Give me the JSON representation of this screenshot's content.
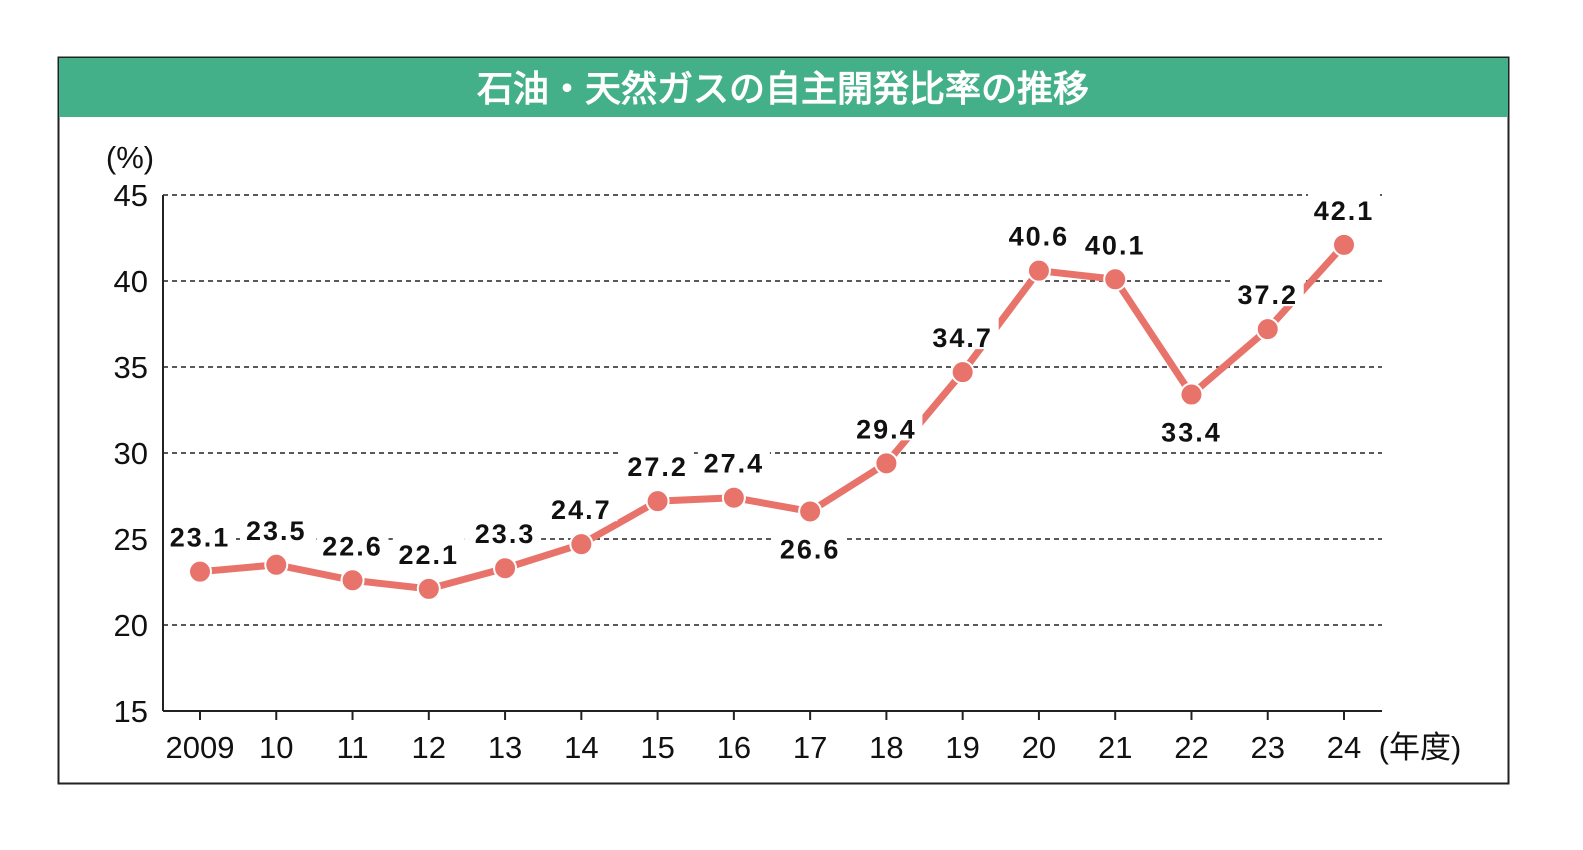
{
  "chart_data": {
    "type": "line",
    "title": "石油・天然ガスの自主開発比率の推移",
    "ylabel": "(%)",
    "xlabel": "(年度)",
    "categories": [
      "2009",
      "10",
      "11",
      "12",
      "13",
      "14",
      "15",
      "16",
      "17",
      "18",
      "19",
      "20",
      "21",
      "22",
      "23",
      "24"
    ],
    "series": [
      {
        "values": [
          23.1,
          23.5,
          22.6,
          22.1,
          23.3,
          24.7,
          27.2,
          27.4,
          26.6,
          29.4,
          34.7,
          40.6,
          40.1,
          33.4,
          37.2,
          42.1
        ]
      }
    ],
    "data_labels": [
      "23.1",
      "23.5",
      "22.6",
      "22.1",
      "23.3",
      "24.7",
      "27.2",
      "27.4",
      "26.6",
      "29.4",
      "34.7",
      "40.6",
      "40.1",
      "33.4",
      "37.2",
      "42.1"
    ],
    "label_below": [
      false,
      false,
      false,
      false,
      false,
      false,
      false,
      false,
      true,
      false,
      false,
      false,
      false,
      true,
      false,
      false
    ],
    "ylim": [
      15,
      45
    ],
    "yticks": [
      "15",
      "20",
      "25",
      "30",
      "35",
      "40",
      "45"
    ],
    "grid": "horizontal dashed",
    "colors": {
      "line": "#E8736B",
      "title_band": "#43B08A"
    }
  }
}
